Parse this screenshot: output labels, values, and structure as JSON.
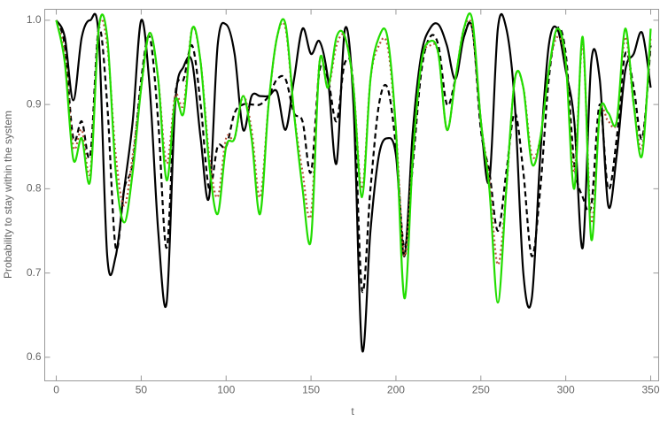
{
  "chart_data": {
    "type": "line",
    "x_label": "t",
    "y_label": "Probability to stay within the system",
    "xlim": [
      -6.8,
      354.7
    ],
    "ylim": [
      0.572,
      1.013
    ],
    "xticks": [
      0,
      50,
      100,
      150,
      200,
      250,
      300,
      350
    ],
    "yticks": [
      0.6,
      0.7,
      0.8,
      0.9,
      {
        "value": 1,
        "label": "1.0"
      }
    ],
    "x": [
      0,
      5,
      10,
      15,
      20,
      25,
      30,
      35,
      40,
      45,
      50,
      55,
      60,
      65,
      70,
      75,
      80,
      85,
      90,
      95,
      100,
      105,
      110,
      115,
      120,
      125,
      130,
      135,
      140,
      145,
      150,
      155,
      160,
      165,
      170,
      175,
      180,
      185,
      190,
      195,
      200,
      205,
      210,
      215,
      220,
      225,
      230,
      235,
      240,
      245,
      250,
      255,
      260,
      265,
      270,
      275,
      280,
      285,
      290,
      295,
      300,
      305,
      310,
      315,
      320,
      325,
      330,
      335,
      340,
      345,
      350
    ],
    "series": [
      {
        "color": "#000000",
        "dash": "solid",
        "values": [
          1.0,
          0.98,
          0.905,
          0.98,
          1.0,
          0.98,
          0.72,
          0.72,
          0.8,
          0.88,
          1.0,
          0.92,
          0.75,
          0.665,
          0.9,
          0.945,
          0.95,
          0.86,
          0.79,
          0.97,
          0.995,
          0.96,
          0.87,
          0.91,
          0.91,
          0.91,
          0.915,
          0.87,
          0.93,
          0.99,
          0.96,
          0.975,
          0.93,
          0.83,
          0.99,
          0.9,
          0.61,
          0.75,
          0.84,
          0.86,
          0.84,
          0.72,
          0.87,
          0.96,
          0.99,
          0.995,
          0.97,
          0.93,
          0.98,
          0.99,
          0.88,
          0.81,
          0.99,
          0.99,
          0.9,
          0.7,
          0.67,
          0.84,
          0.97,
          0.99,
          0.94,
          0.88,
          0.73,
          0.95,
          0.93,
          0.78,
          0.84,
          0.94,
          0.96,
          0.985,
          0.92
        ]
      },
      {
        "color": "#000000",
        "dash": "dashed",
        "values": [
          1.0,
          0.97,
          0.86,
          0.88,
          0.84,
          0.99,
          0.9,
          0.73,
          0.8,
          0.83,
          0.93,
          0.98,
          0.88,
          0.73,
          0.91,
          0.93,
          0.97,
          0.9,
          0.8,
          0.85,
          0.85,
          0.89,
          0.9,
          0.9,
          0.9,
          0.91,
          0.93,
          0.93,
          0.89,
          0.88,
          0.82,
          0.94,
          0.93,
          0.88,
          0.95,
          0.92,
          0.68,
          0.8,
          0.9,
          0.92,
          0.85,
          0.73,
          0.83,
          0.94,
          0.98,
          0.97,
          0.9,
          0.93,
          0.98,
          0.99,
          0.87,
          0.82,
          0.75,
          0.82,
          0.89,
          0.82,
          0.72,
          0.8,
          0.93,
          0.99,
          0.96,
          0.83,
          0.79,
          0.78,
          0.9,
          0.8,
          0.86,
          0.96,
          0.92,
          0.86,
          0.97
        ]
      },
      {
        "color": "#b5523b",
        "dash": "dotted",
        "values": [
          1.0,
          0.96,
          0.85,
          0.87,
          0.82,
          0.99,
          0.97,
          0.84,
          0.78,
          0.84,
          0.92,
          0.985,
          0.93,
          0.83,
          0.91,
          0.9,
          0.99,
          0.95,
          0.84,
          0.79,
          0.86,
          0.86,
          0.91,
          0.87,
          0.79,
          0.9,
          0.98,
          0.99,
          0.89,
          0.82,
          0.77,
          0.95,
          0.92,
          0.97,
          0.98,
          0.92,
          0.8,
          0.93,
          0.97,
          0.97,
          0.87,
          0.72,
          0.84,
          0.95,
          0.97,
          0.96,
          0.87,
          0.93,
          0.99,
          0.99,
          0.88,
          0.81,
          0.71,
          0.8,
          0.93,
          0.92,
          0.84,
          0.86,
          0.94,
          0.98,
          0.95,
          0.82,
          0.97,
          0.76,
          0.89,
          0.88,
          0.88,
          0.98,
          0.9,
          0.85,
          0.98
        ]
      },
      {
        "color": "#22dd00",
        "dash": "solid",
        "values": [
          1.0,
          0.95,
          0.835,
          0.86,
          0.81,
          0.99,
          0.98,
          0.82,
          0.76,
          0.82,
          0.92,
          0.985,
          0.93,
          0.81,
          0.905,
          0.89,
          0.99,
          0.95,
          0.83,
          0.77,
          0.85,
          0.86,
          0.91,
          0.86,
          0.77,
          0.9,
          0.98,
          0.995,
          0.89,
          0.8,
          0.74,
          0.95,
          0.92,
          0.98,
          0.98,
          0.92,
          0.79,
          0.93,
          0.98,
          0.98,
          0.87,
          0.67,
          0.84,
          0.95,
          0.975,
          0.96,
          0.87,
          0.93,
          0.99,
          1.0,
          0.88,
          0.8,
          0.665,
          0.8,
          0.93,
          0.92,
          0.83,
          0.86,
          0.94,
          0.99,
          0.95,
          0.8,
          0.98,
          0.74,
          0.89,
          0.89,
          0.88,
          0.99,
          0.9,
          0.84,
          0.99
        ]
      }
    ]
  }
}
